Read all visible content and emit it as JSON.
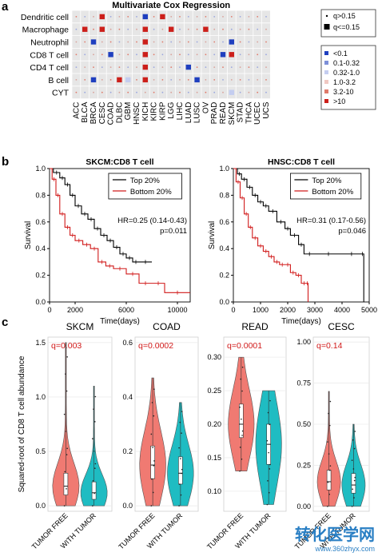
{
  "panels": {
    "a": "a",
    "b": "b",
    "c": "c"
  },
  "chart_data": [
    {
      "type": "heatmap",
      "id": "panel-a",
      "title": "Multivariate Cox Regression",
      "rows": [
        "Dendritic cell",
        "Macrophage",
        "Neutrophil",
        "CD8 T cell",
        "CD4 T cell",
        "B cell",
        "CYT"
      ],
      "columns": [
        "ACC",
        "BLCA",
        "BRCA",
        "CESC",
        "COAD",
        "DLBC",
        "GBM",
        "HNSC",
        "KICH",
        "KIRC",
        "KIRP",
        "LGG",
        "LIHC",
        "LUAD",
        "LUSC",
        "OV",
        "PRAD",
        "READ",
        "SKCM",
        "STAD",
        "THCA",
        "UCEC",
        "UCS"
      ],
      "cells": [
        {
          "row": "Dendritic cell",
          "col": "CESC",
          "level": ">10",
          "sig": true
        },
        {
          "row": "Dendritic cell",
          "col": "KICH",
          "level": "<0.1",
          "sig": true
        },
        {
          "row": "Dendritic cell",
          "col": "KIRP",
          "level": ">10",
          "sig": true
        },
        {
          "row": "Macrophage",
          "col": "BLCA",
          "level": ">10",
          "sig": true
        },
        {
          "row": "Macrophage",
          "col": "CESC",
          "level": ">10",
          "sig": true
        },
        {
          "row": "Macrophage",
          "col": "KICH",
          "level": ">10",
          "sig": true
        },
        {
          "row": "Macrophage",
          "col": "LGG",
          "level": ">10",
          "sig": true
        },
        {
          "row": "Macrophage",
          "col": "OV",
          "level": ">10",
          "sig": true
        },
        {
          "row": "Neutrophil",
          "col": "BRCA",
          "level": "<0.1",
          "sig": true
        },
        {
          "row": "Neutrophil",
          "col": "KICH",
          "level": ">10",
          "sig": true
        },
        {
          "row": "Neutrophil",
          "col": "SKCM",
          "level": "<0.1",
          "sig": true
        },
        {
          "row": "CD8 T cell",
          "col": "COAD",
          "level": "<0.1",
          "sig": true
        },
        {
          "row": "CD8 T cell",
          "col": "KICH",
          "level": ">10",
          "sig": true
        },
        {
          "row": "CD8 T cell",
          "col": "READ",
          "level": "<0.1",
          "sig": true
        },
        {
          "row": "CD8 T cell",
          "col": "SKCM",
          "level": ">10",
          "sig": true
        },
        {
          "row": "CD4 T cell",
          "col": "KICH",
          "level": ">10",
          "sig": true
        },
        {
          "row": "CD4 T cell",
          "col": "LUAD",
          "level": "<0.1",
          "sig": true
        },
        {
          "row": "B cell",
          "col": "BRCA",
          "level": "<0.1",
          "sig": true
        },
        {
          "row": "B cell",
          "col": "DLBC",
          "level": ">10",
          "sig": true
        },
        {
          "row": "B cell",
          "col": "GBM",
          "level": "0.32-1.0",
          "sig": true
        },
        {
          "row": "B cell",
          "col": "KICH",
          "level": ">10",
          "sig": true
        },
        {
          "row": "B cell",
          "col": "LUSC",
          "level": "<0.1",
          "sig": true
        },
        {
          "row": "CYT",
          "col": "SKCM",
          "level": "0.32-1.0",
          "sig": true
        }
      ],
      "legend_size": [
        {
          "label": "q>0.15",
          "symbol": "small"
        },
        {
          "label": "q<=0.15",
          "symbol": "large"
        }
      ],
      "legend_color": [
        {
          "label": "<0.1",
          "color": "#1f3fbf"
        },
        {
          "label": "0.1-0.32",
          "color": "#7d8fd8"
        },
        {
          "label": "0.32-1.0",
          "color": "#c4cdf0"
        },
        {
          "label": "1.0-3.2",
          "color": "#f0c8c2"
        },
        {
          "label": "3.2-10",
          "color": "#e07a6a"
        },
        {
          "label": ">10",
          "color": "#cc1f1a"
        }
      ],
      "colors": {
        "background": "#e6e6e6",
        "high": "#cc1f1a",
        "low": "#1f3fbf",
        "dot": "#e07a6a"
      }
    },
    {
      "type": "line",
      "subtype": "kaplan-meier",
      "id": "panel-b-left",
      "title": "SKCM:CD8 T cell",
      "xlabel": "Time(days)",
      "ylabel": "Survival",
      "xlim": [
        0,
        11000
      ],
      "ylim": [
        0,
        1.0
      ],
      "xticks": [
        0,
        2000,
        6000,
        10000
      ],
      "yticks": [
        "0.0",
        "0.2",
        "0.4",
        "0.6",
        "0.8",
        "1.0"
      ],
      "annotation": [
        "HR=0.25 (0.14-0.43)",
        "p=0.011"
      ],
      "series": [
        {
          "name": "Top 20%",
          "color": "#000000",
          "x": [
            0,
            300,
            800,
            1200,
            1600,
            2000,
            2500,
            3000,
            3500,
            4000,
            4500,
            5000,
            5500,
            6000,
            6500,
            7000,
            8000
          ],
          "y": [
            1.0,
            0.97,
            0.93,
            0.88,
            0.8,
            0.72,
            0.66,
            0.62,
            0.55,
            0.5,
            0.46,
            0.41,
            0.36,
            0.33,
            0.3,
            0.3,
            0.3
          ]
        },
        {
          "name": "Bottom 20%",
          "color": "#d11a1a",
          "x": [
            0,
            200,
            500,
            800,
            1200,
            1600,
            2000,
            2600,
            3200,
            3800,
            4400,
            5000,
            6000,
            7000,
            8000,
            9000,
            11000
          ],
          "y": [
            1.0,
            0.92,
            0.8,
            0.66,
            0.56,
            0.5,
            0.46,
            0.43,
            0.4,
            0.3,
            0.27,
            0.25,
            0.21,
            0.14,
            0.14,
            0.07,
            0.07
          ]
        }
      ]
    },
    {
      "type": "line",
      "subtype": "kaplan-meier",
      "id": "panel-b-right",
      "title": "HNSC:CD8 T cell",
      "xlabel": "Time(days)",
      "ylabel": "Survival",
      "xlim": [
        0,
        5000
      ],
      "ylim": [
        0,
        1.0
      ],
      "xticks": [
        0,
        1000,
        2000,
        3000,
        4000,
        5000
      ],
      "yticks": [
        "0.0",
        "0.2",
        "0.4",
        "0.6",
        "0.8",
        "1.0"
      ],
      "annotation": [
        "HR=0.31 (0.17-0.56)",
        "p=0.046"
      ],
      "series": [
        {
          "name": "Top 20%",
          "color": "#000000",
          "x": [
            0,
            150,
            300,
            500,
            700,
            900,
            1100,
            1300,
            1600,
            1900,
            2100,
            2400,
            2600,
            3000,
            4000,
            4700,
            4800
          ],
          "y": [
            1.0,
            0.96,
            0.92,
            0.86,
            0.8,
            0.75,
            0.72,
            0.68,
            0.6,
            0.55,
            0.5,
            0.43,
            0.36,
            0.36,
            0.36,
            0.36,
            0.0
          ]
        },
        {
          "name": "Bottom 20%",
          "color": "#d11a1a",
          "x": [
            0,
            100,
            250,
            400,
            550,
            700,
            900,
            1100,
            1300,
            1500,
            1700,
            1900,
            2100,
            2300,
            2500,
            2700,
            2750
          ],
          "y": [
            1.0,
            0.9,
            0.78,
            0.66,
            0.56,
            0.48,
            0.42,
            0.38,
            0.34,
            0.3,
            0.28,
            0.28,
            0.22,
            0.2,
            0.14,
            0.14,
            0.0
          ]
        }
      ]
    },
    {
      "type": "violin",
      "id": "panel-c",
      "ylabel": "Squared-root of CD8 T cell abundance",
      "categories": [
        "TUMOR FREE",
        "WITH TUMOR"
      ],
      "colors": {
        "tumor_free": "#f07a72",
        "with_tumor": "#1fbcc2"
      },
      "facets": [
        {
          "title": "SKCM",
          "q": "q=0.003",
          "ylim": [
            -0.05,
            1.55
          ],
          "yticks": [
            "0.0",
            "0.5",
            "1.0",
            "1.5"
          ],
          "tumor_free": {
            "median": 0.18,
            "q1": 0.1,
            "q3": 0.3,
            "min": 0.0,
            "max": 1.5
          },
          "with_tumor": {
            "median": 0.12,
            "q1": 0.06,
            "q3": 0.22,
            "min": 0.0,
            "max": 1.1
          }
        },
        {
          "title": "COAD",
          "q": "q=0.0002",
          "ylim": [
            -0.02,
            0.62
          ],
          "yticks": [
            "0.0",
            "0.2",
            "0.4",
            "0.6"
          ],
          "tumor_free": {
            "median": 0.15,
            "q1": 0.1,
            "q3": 0.22,
            "min": 0.0,
            "max": 0.47
          },
          "with_tumor": {
            "median": 0.12,
            "q1": 0.08,
            "q3": 0.18,
            "min": 0.0,
            "max": 0.38
          }
        },
        {
          "title": "READ",
          "q": "q=0.0001",
          "ylim": [
            0.07,
            0.33
          ],
          "yticks": [
            "0.10",
            "0.15",
            "0.20",
            "0.25",
            "0.30"
          ],
          "tumor_free": {
            "median": 0.2,
            "q1": 0.18,
            "q3": 0.23,
            "min": 0.13,
            "max": 0.3
          },
          "with_tumor": {
            "median": 0.17,
            "q1": 0.14,
            "q3": 0.2,
            "min": 0.08,
            "max": 0.25
          }
        },
        {
          "title": "CESC",
          "q": "q=0.14",
          "ylim": [
            -0.03,
            1.03
          ],
          "yticks": [
            "0.00",
            "0.25",
            "0.50",
            "0.75",
            "1.00"
          ],
          "tumor_free": {
            "median": 0.15,
            "q1": 0.1,
            "q3": 0.22,
            "min": 0.0,
            "max": 0.7
          },
          "with_tumor": {
            "median": 0.13,
            "q1": 0.08,
            "q3": 0.2,
            "min": 0.0,
            "max": 0.5
          }
        }
      ]
    }
  ],
  "watermark": {
    "main": "转化医学网",
    "sub": "www.360zhyx.com",
    "color": "#2a7fc4"
  }
}
